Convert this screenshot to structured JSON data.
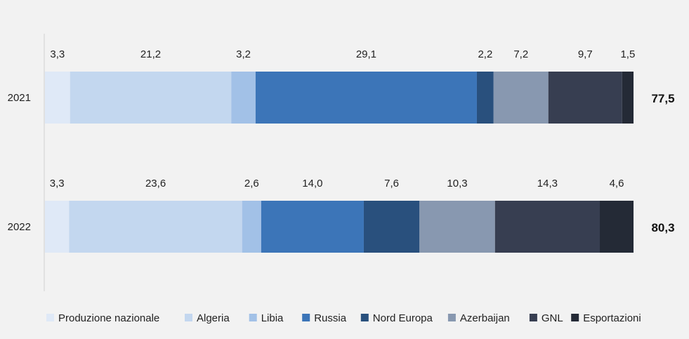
{
  "chart_data": {
    "type": "bar",
    "orientation": "horizontal",
    "stacked": true,
    "title": "",
    "xlabel": "",
    "ylabel": "",
    "categories": [
      "2021",
      "2022"
    ],
    "series": [
      {
        "name": "Produzione nazionale",
        "color": "#dfe9f7",
        "values": [
          3.3,
          3.3
        ],
        "labels": [
          "3,3",
          "3,3"
        ]
      },
      {
        "name": "Algeria",
        "color": "#c3d7ef",
        "values": [
          21.2,
          23.6
        ],
        "labels": [
          "21,2",
          "23,6"
        ]
      },
      {
        "name": "Libia",
        "color": "#a2c1e7",
        "values": [
          3.2,
          2.6
        ],
        "labels": [
          "3,2",
          "2,6"
        ]
      },
      {
        "name": "Russia",
        "color": "#3c75b8",
        "values": [
          29.1,
          14.0
        ],
        "labels": [
          "29,1",
          "14,0"
        ]
      },
      {
        "name": "Nord Europa",
        "color": "#29507d",
        "values": [
          2.2,
          7.6
        ],
        "labels": [
          "2,2",
          "7,6"
        ]
      },
      {
        "name": "Azerbaijan",
        "color": "#8898b0",
        "values": [
          7.2,
          10.3
        ],
        "labels": [
          "7,2",
          "10,3"
        ]
      },
      {
        "name": "GNL",
        "color": "#373e51",
        "values": [
          9.7,
          14.3
        ],
        "labels": [
          "9,7",
          "14,3"
        ]
      },
      {
        "name": "Esportazioni",
        "color": "#242a36",
        "values": [
          1.5,
          4.6
        ],
        "labels": [
          "1,5",
          "4,6"
        ]
      }
    ],
    "totals": [
      "77,5",
      "80,3"
    ],
    "legend_position": "bottom",
    "grid": false
  }
}
